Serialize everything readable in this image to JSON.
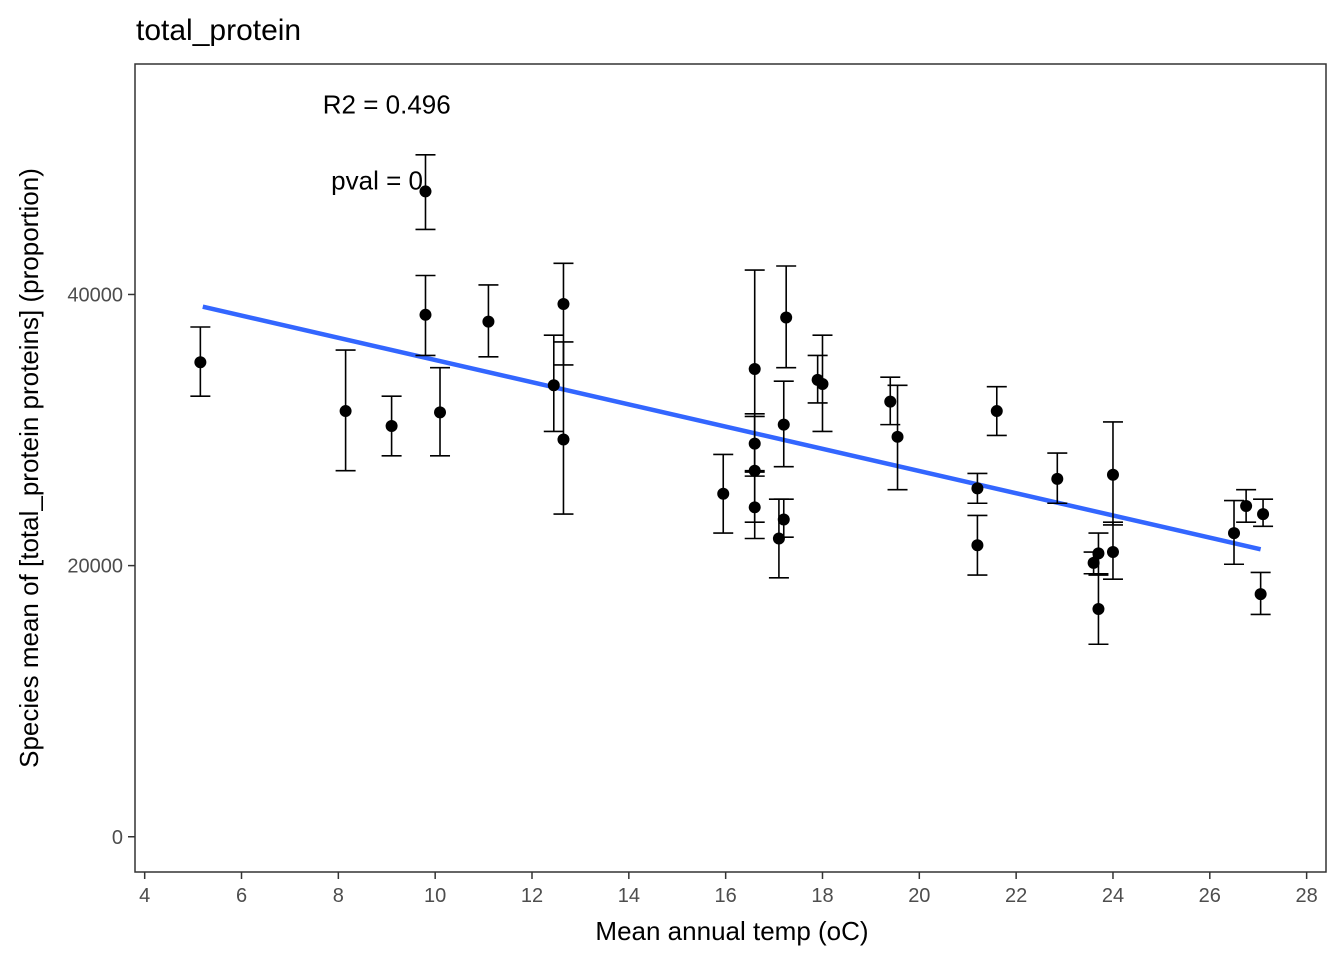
{
  "chart_data": {
    "type": "scatter",
    "title": "total_protein",
    "xlabel": "Mean annual temp (oC)",
    "ylabel": "Species mean of [total_protein proteins] (proportion)",
    "xlim": [
      3.8,
      28.4
    ],
    "ylim": [
      -2600,
      57000
    ],
    "x_ticks": [
      4,
      6,
      8,
      10,
      12,
      14,
      16,
      18,
      20,
      22,
      24,
      26,
      28
    ],
    "y_ticks": [
      0,
      20000,
      40000
    ],
    "grid": false,
    "legend": "none",
    "annotations": [
      {
        "text": "R2 = 0.496",
        "x": 9.0,
        "y": 54000
      },
      {
        "text": "pval = 0",
        "x": 8.8,
        "y": 48400
      }
    ],
    "points": [
      {
        "x": 5.15,
        "y": 35000,
        "lo": 32500,
        "hi": 37600
      },
      {
        "x": 8.15,
        "y": 31400,
        "lo": 27000,
        "hi": 35900
      },
      {
        "x": 9.1,
        "y": 30300,
        "lo": 28100,
        "hi": 32500
      },
      {
        "x": 9.8,
        "y": 47600,
        "lo": 44800,
        "hi": 50300
      },
      {
        "x": 9.8,
        "y": 38500,
        "lo": 35500,
        "hi": 41400
      },
      {
        "x": 10.1,
        "y": 31300,
        "lo": 28100,
        "hi": 34600
      },
      {
        "x": 11.1,
        "y": 38000,
        "lo": 35400,
        "hi": 40700
      },
      {
        "x": 12.45,
        "y": 33300,
        "lo": 29900,
        "hi": 37000
      },
      {
        "x": 12.65,
        "y": 39300,
        "lo": 34800,
        "hi": 42300
      },
      {
        "x": 12.65,
        "y": 29300,
        "lo": 23800,
        "hi": 36500
      },
      {
        "x": 15.95,
        "y": 25300,
        "lo": 22400,
        "hi": 28200
      },
      {
        "x": 16.6,
        "y": 34500,
        "lo": 27000,
        "hi": 41800
      },
      {
        "x": 16.6,
        "y": 29000,
        "lo": 26900,
        "hi": 31200
      },
      {
        "x": 16.6,
        "y": 27000,
        "lo": 23200,
        "hi": 31000
      },
      {
        "x": 16.6,
        "y": 24300,
        "lo": 22000,
        "hi": 26600
      },
      {
        "x": 17.1,
        "y": 22000,
        "lo": 19100,
        "hi": 24900
      },
      {
        "x": 17.2,
        "y": 30400,
        "lo": 27300,
        "hi": 33600
      },
      {
        "x": 17.2,
        "y": 23400,
        "lo": 22100,
        "hi": 24900
      },
      {
        "x": 17.25,
        "y": 38300,
        "lo": 34600,
        "hi": 42100
      },
      {
        "x": 17.9,
        "y": 33700,
        "lo": 32000,
        "hi": 35500
      },
      {
        "x": 18.0,
        "y": 33400,
        "lo": 29900,
        "hi": 37000
      },
      {
        "x": 19.4,
        "y": 32100,
        "lo": 30400,
        "hi": 33900
      },
      {
        "x": 19.55,
        "y": 29500,
        "lo": 25600,
        "hi": 33300
      },
      {
        "x": 21.2,
        "y": 25700,
        "lo": 24600,
        "hi": 26800
      },
      {
        "x": 21.2,
        "y": 21500,
        "lo": 19300,
        "hi": 23700
      },
      {
        "x": 21.6,
        "y": 31400,
        "lo": 29600,
        "hi": 33200
      },
      {
        "x": 22.85,
        "y": 26400,
        "lo": 24600,
        "hi": 28300
      },
      {
        "x": 23.6,
        "y": 20200,
        "lo": 19400,
        "hi": 21000
      },
      {
        "x": 23.7,
        "y": 20900,
        "lo": 19300,
        "hi": 22400
      },
      {
        "x": 23.7,
        "y": 16800,
        "lo": 14200,
        "hi": 19400
      },
      {
        "x": 24.0,
        "y": 26700,
        "lo": 23000,
        "hi": 30600
      },
      {
        "x": 24.0,
        "y": 21000,
        "lo": 19000,
        "hi": 23200
      },
      {
        "x": 26.5,
        "y": 22400,
        "lo": 20100,
        "hi": 24800
      },
      {
        "x": 26.75,
        "y": 24400,
        "lo": 23200,
        "hi": 25600
      },
      {
        "x": 27.05,
        "y": 17900,
        "lo": 16400,
        "hi": 19500
      },
      {
        "x": 27.1,
        "y": 23800,
        "lo": 22900,
        "hi": 24900
      }
    ],
    "trend_line": {
      "x": [
        5.2,
        27.05
      ],
      "y": [
        39100,
        21200
      ],
      "color": "#3366ff"
    },
    "colors": {
      "points": "#000000",
      "errorbars": "#000000",
      "trend": "#3366ff",
      "axis": "#333333",
      "tick_text": "#4d4d4d"
    }
  }
}
